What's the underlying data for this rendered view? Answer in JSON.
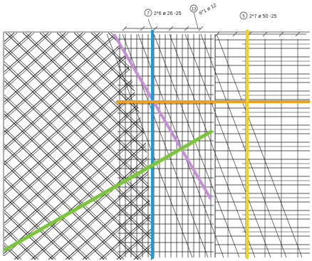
{
  "callouts": [
    {
      "number": "7",
      "text": "2*6 ø 26 -25"
    },
    {
      "number": "13",
      "text": "6*1 ø 12"
    },
    {
      "number": "5",
      "text": "2*7 ø 50 -25"
    }
  ],
  "highlight_colors": {
    "purple": "#c48fd6",
    "blue": "#1e9ad6",
    "orange": "#f0a020",
    "yellow": "#f2d21a",
    "green": "#7cc63c"
  },
  "line_color": "#1a1a1a"
}
